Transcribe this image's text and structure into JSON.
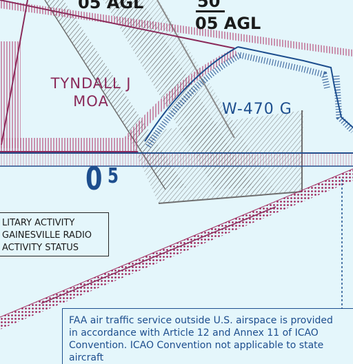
{
  "map": {
    "colors": {
      "background": "#e4f6fb",
      "moa": "#8a2a5a",
      "warning_area": "#1d4e8e",
      "restricted_gray": "#6e6e6e",
      "text_dark": "#1a1a1a"
    },
    "labels": {
      "agl_top": "05 AGL",
      "altitude_upper": "50",
      "altitude_lower": "05 AGL",
      "moa_line1": "TYNDALL J",
      "moa_line2": "MOA",
      "warning_area": "W-470 G",
      "isogonic_big": "0",
      "isogonic_small": "5"
    },
    "military_box": {
      "line1": "LITARY ACTIVITY",
      "line2": "GAINESVILLE RADIO",
      "line3": "ACTIVITY STATUS"
    },
    "faa_note": {
      "line1": "FAA air traffic service outside U.S. airspace is provided",
      "line2": "in accordance with Article 12 and Annex 11 of ICAO",
      "line3": "Convention.  ICAO Convention not applicable to state",
      "line4": "aircraft"
    }
  }
}
